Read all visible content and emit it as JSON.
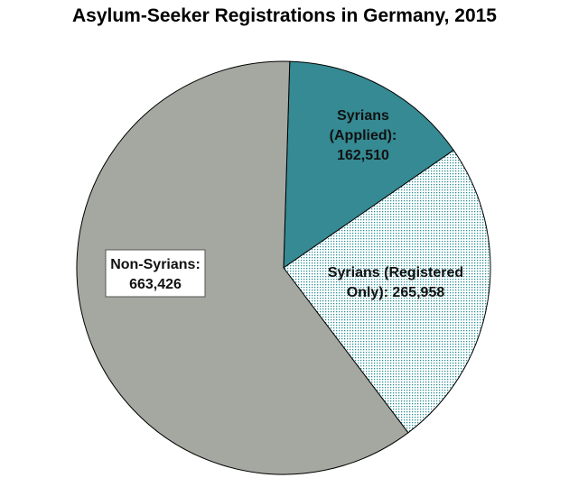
{
  "chart_data": {
    "type": "pie",
    "title": "Asylum-Seeker Registrations in Germany, 2015",
    "start_angle_deg": 1.7,
    "direction": "clockwise",
    "slices": [
      {
        "label_lines": [
          "Syrians",
          "(Applied):",
          "162,510"
        ],
        "value": 162510,
        "color": "#358a93",
        "fill": "solid"
      },
      {
        "label_lines": [
          "Syrians (Registered",
          "Only): 265,958"
        ],
        "value": 265958,
        "color": "#2a8f95",
        "fill": "dotted"
      },
      {
        "label_lines": [
          "Non-Syrians:",
          "663,426"
        ],
        "value": 663426,
        "color": "#a5a8a1",
        "fill": "solid",
        "label_boxed": true
      }
    ]
  }
}
